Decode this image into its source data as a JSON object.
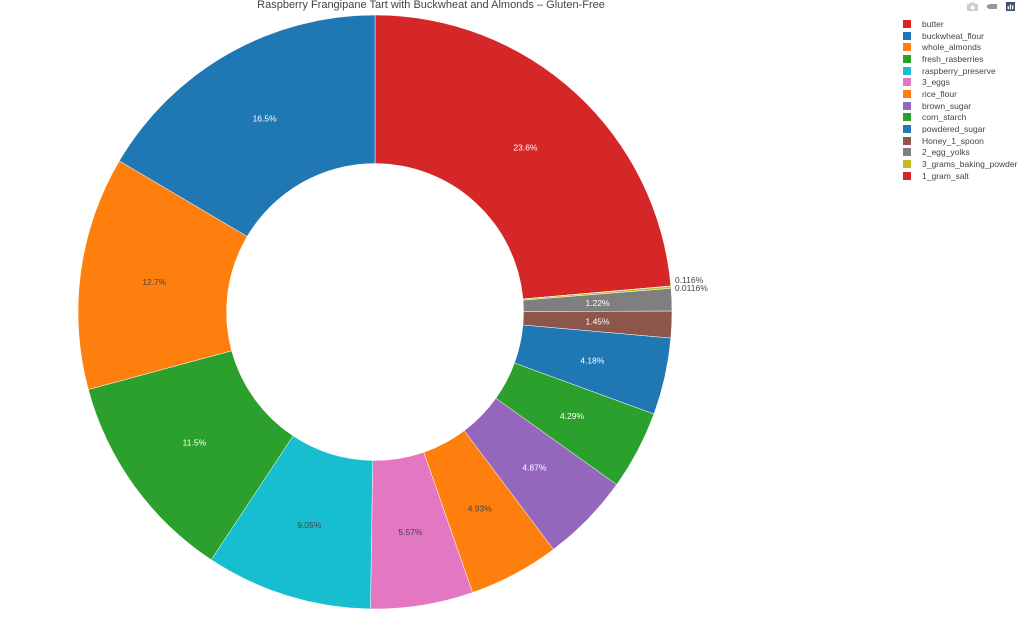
{
  "chart_data": {
    "type": "pie",
    "hole": 0.5,
    "title": "Raspberry Frangipane Tart with Buckwheat and Almonds – Gluten-Free",
    "legend_position": "top-right",
    "slices": [
      {
        "label": "butter",
        "value": 23.6,
        "text": "23.6%",
        "color": "#d62728"
      },
      {
        "label": "buckwheat_flour",
        "value": 16.5,
        "text": "16.5%",
        "color": "#1f77b4"
      },
      {
        "label": "whole_almonds",
        "value": 12.7,
        "text": "12.7%",
        "color": "#ff7f0e"
      },
      {
        "label": "fresh_rasberries",
        "value": 11.5,
        "text": "11.5%",
        "color": "#2ca02c"
      },
      {
        "label": "raspberry_preserve",
        "value": 9.05,
        "text": "9.05%",
        "color": "#17becf"
      },
      {
        "label": "3_eggs",
        "value": 5.57,
        "text": "5.57%",
        "color": "#e377c2"
      },
      {
        "label": "rice_flour",
        "value": 4.93,
        "text": "4.93%",
        "color": "#ff7f0e"
      },
      {
        "label": "brown_sugar",
        "value": 4.87,
        "text": "4.87%",
        "color": "#9467bd"
      },
      {
        "label": "corn_starch",
        "value": 4.29,
        "text": "4.29%",
        "color": "#2ca02c"
      },
      {
        "label": "powdered_sugar",
        "value": 4.18,
        "text": "4.18%",
        "color": "#1f77b4"
      },
      {
        "label": "Honey_1_spoon",
        "value": 1.45,
        "text": "1.45%",
        "color": "#8c564b"
      },
      {
        "label": "2_egg_yolks",
        "value": 1.22,
        "text": "1.22%",
        "color": "#7f7f7f"
      },
      {
        "label": "3_grams_baking_powder",
        "value": 0.116,
        "text": "0.116%",
        "color": "#bcbd22"
      },
      {
        "label": "1_gram_salt",
        "value": 0.0116,
        "text": "0.0116%",
        "color": "#d62728"
      }
    ]
  },
  "modebar": [
    "camera-icon",
    "pan-icon",
    "plotly-logo-icon"
  ]
}
